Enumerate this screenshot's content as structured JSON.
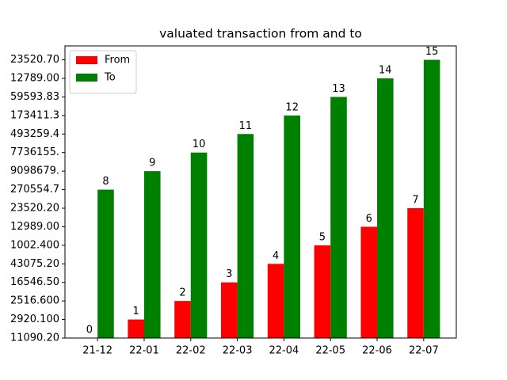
{
  "chart_data": {
    "type": "bar",
    "title": "valuated transaction from and to",
    "categories": [
      "21-12",
      "22-01",
      "22-02",
      "22-03",
      "22-04",
      "22-05",
      "22-06",
      "22-07"
    ],
    "series": [
      {
        "name": "From",
        "color": "#ff0000",
        "values": [
          0,
          1,
          2,
          3,
          4,
          5,
          6,
          7
        ]
      },
      {
        "name": "To",
        "color": "#008000",
        "values": [
          8,
          9,
          10,
          11,
          12,
          13,
          14,
          15
        ]
      }
    ],
    "ylim": [
      0,
      15.75
    ],
    "yticks": [
      {
        "value": 0,
        "label": "11090.20"
      },
      {
        "value": 1,
        "label": "2920.100"
      },
      {
        "value": 2,
        "label": "2516.600"
      },
      {
        "value": 3,
        "label": "16546.50"
      },
      {
        "value": 4,
        "label": "43075.20"
      },
      {
        "value": 5,
        "label": "1002.400"
      },
      {
        "value": 6,
        "label": "12989.00"
      },
      {
        "value": 7,
        "label": "23520.20"
      },
      {
        "value": 8,
        "label": "270554.7"
      },
      {
        "value": 9,
        "label": "9098679."
      },
      {
        "value": 10,
        "label": "7736155."
      },
      {
        "value": 11,
        "label": "493259.4"
      },
      {
        "value": 12,
        "label": "173411.3"
      },
      {
        "value": 13,
        "label": "59593.83"
      },
      {
        "value": 14,
        "label": "12789.00"
      },
      {
        "value": 15,
        "label": "23520.70"
      }
    ],
    "legend": "upper left"
  }
}
